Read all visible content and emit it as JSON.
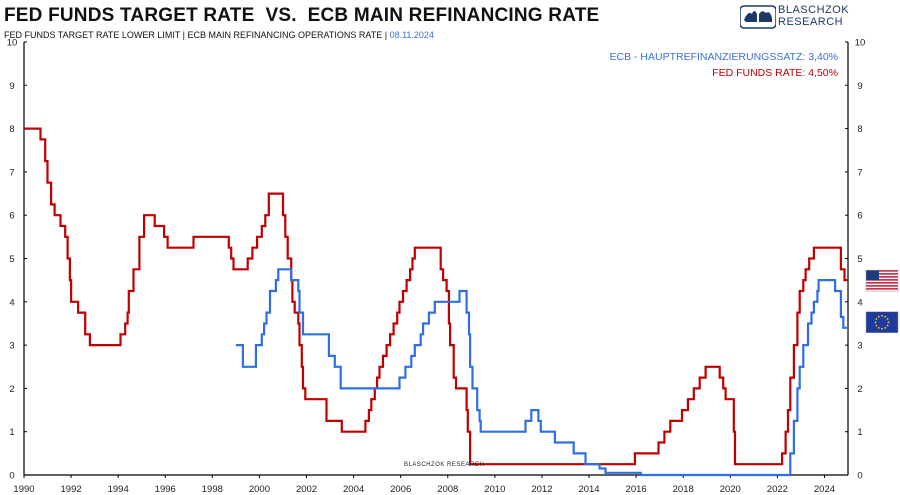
{
  "header": {
    "title": "FED FUNDS TARGET RATE  VS.  ECB MAIN REFINANCING RATE",
    "subtitle_main": "FED FUNDS TARGET RATE LOWER LIMIT | ECB MAIN REFINANCING OPERATIONS RATE | ",
    "subtitle_date": "08.11.2024"
  },
  "logo": {
    "line1": "BLASCHZOK",
    "line2": "RESEARCH",
    "icon": "bull-bear-logo-icon"
  },
  "watermark": "BLASCHZOK  RESEARCH",
  "legend": {
    "ecb_label": "ECB - HAUPTREFINANZIERUNGSSATZ: 3,40%",
    "fed_label": "FED FUNDS RATE: 4,50%"
  },
  "flags": {
    "us": "us-flag-icon",
    "eu": "eu-flag-icon"
  },
  "colors": {
    "fed": "#c00000",
    "ecb": "#2f6fe0",
    "axis": "#000000"
  },
  "chart_data": {
    "type": "line",
    "title": "FED FUNDS TARGET RATE  VS.  ECB MAIN REFINANCING RATE",
    "xlim": [
      1990,
      2025
    ],
    "ylim": [
      0,
      10
    ],
    "x_ticks": [
      1990,
      1992,
      1994,
      1996,
      1998,
      2000,
      2002,
      2004,
      2006,
      2008,
      2010,
      2012,
      2014,
      2016,
      2018,
      2020,
      2022,
      2024
    ],
    "y_ticks": [
      0,
      1,
      2,
      3,
      4,
      5,
      6,
      7,
      8,
      9,
      10
    ],
    "grid": false,
    "legend_position": "top-right",
    "series": [
      {
        "name": "FED FUNDS RATE: 4,50%",
        "color": "#c00000",
        "step": true,
        "points": [
          [
            1990.0,
            8.0
          ],
          [
            1990.7,
            7.75
          ],
          [
            1990.9,
            7.25
          ],
          [
            1991.0,
            6.75
          ],
          [
            1991.15,
            6.25
          ],
          [
            1991.3,
            6.0
          ],
          [
            1991.55,
            5.75
          ],
          [
            1991.75,
            5.5
          ],
          [
            1991.85,
            5.0
          ],
          [
            1991.95,
            4.5
          ],
          [
            1992.0,
            4.0
          ],
          [
            1992.3,
            3.75
          ],
          [
            1992.6,
            3.25
          ],
          [
            1992.8,
            3.0
          ],
          [
            1994.1,
            3.25
          ],
          [
            1994.3,
            3.5
          ],
          [
            1994.4,
            3.75
          ],
          [
            1994.45,
            4.25
          ],
          [
            1994.65,
            4.75
          ],
          [
            1994.9,
            5.5
          ],
          [
            1995.1,
            6.0
          ],
          [
            1995.55,
            5.75
          ],
          [
            1995.95,
            5.5
          ],
          [
            1996.1,
            5.25
          ],
          [
            1997.2,
            5.5
          ],
          [
            1998.7,
            5.25
          ],
          [
            1998.8,
            5.0
          ],
          [
            1998.9,
            4.75
          ],
          [
            1999.5,
            5.0
          ],
          [
            1999.7,
            5.25
          ],
          [
            1999.9,
            5.5
          ],
          [
            2000.1,
            5.75
          ],
          [
            2000.25,
            6.0
          ],
          [
            2000.4,
            6.5
          ],
          [
            2001.0,
            6.0
          ],
          [
            2001.1,
            5.5
          ],
          [
            2001.2,
            5.0
          ],
          [
            2001.35,
            4.5
          ],
          [
            2001.4,
            4.0
          ],
          [
            2001.5,
            3.75
          ],
          [
            2001.65,
            3.5
          ],
          [
            2001.7,
            3.0
          ],
          [
            2001.8,
            2.5
          ],
          [
            2001.85,
            2.0
          ],
          [
            2001.95,
            1.75
          ],
          [
            2002.85,
            1.25
          ],
          [
            2003.5,
            1.0
          ],
          [
            2004.5,
            1.25
          ],
          [
            2004.65,
            1.5
          ],
          [
            2004.75,
            1.75
          ],
          [
            2004.9,
            2.0
          ],
          [
            2005.0,
            2.25
          ],
          [
            2005.1,
            2.5
          ],
          [
            2005.25,
            2.75
          ],
          [
            2005.4,
            3.0
          ],
          [
            2005.55,
            3.25
          ],
          [
            2005.7,
            3.5
          ],
          [
            2005.85,
            3.75
          ],
          [
            2005.95,
            4.0
          ],
          [
            2006.1,
            4.25
          ],
          [
            2006.25,
            4.5
          ],
          [
            2006.4,
            4.75
          ],
          [
            2006.5,
            5.0
          ],
          [
            2006.6,
            5.25
          ],
          [
            2007.7,
            4.75
          ],
          [
            2007.8,
            4.5
          ],
          [
            2007.95,
            4.25
          ],
          [
            2008.05,
            3.5
          ],
          [
            2008.1,
            3.0
          ],
          [
            2008.25,
            2.25
          ],
          [
            2008.35,
            2.0
          ],
          [
            2008.8,
            1.5
          ],
          [
            2008.85,
            1.0
          ],
          [
            2008.95,
            0.25
          ],
          [
            2015.95,
            0.5
          ],
          [
            2016.95,
            0.75
          ],
          [
            2017.2,
            1.0
          ],
          [
            2017.45,
            1.25
          ],
          [
            2017.95,
            1.5
          ],
          [
            2018.2,
            1.75
          ],
          [
            2018.45,
            2.0
          ],
          [
            2018.7,
            2.25
          ],
          [
            2018.95,
            2.5
          ],
          [
            2019.55,
            2.25
          ],
          [
            2019.7,
            2.0
          ],
          [
            2019.8,
            1.75
          ],
          [
            2020.15,
            1.0
          ],
          [
            2020.2,
            0.25
          ],
          [
            2022.2,
            0.5
          ],
          [
            2022.35,
            1.0
          ],
          [
            2022.45,
            1.5
          ],
          [
            2022.55,
            2.25
          ],
          [
            2022.7,
            3.0
          ],
          [
            2022.85,
            3.75
          ],
          [
            2022.95,
            4.25
          ],
          [
            2023.1,
            4.5
          ],
          [
            2023.2,
            4.75
          ],
          [
            2023.35,
            5.0
          ],
          [
            2023.55,
            5.25
          ],
          [
            2024.7,
            4.75
          ],
          [
            2024.85,
            4.5
          ],
          [
            2025.0,
            4.5
          ]
        ]
      },
      {
        "name": "ECB - HAUPTREFINANZIERUNGSSATZ: 3,40%",
        "color": "#2f6fe0",
        "step": true,
        "points": [
          [
            1999.0,
            3.0
          ],
          [
            1999.3,
            2.5
          ],
          [
            1999.85,
            3.0
          ],
          [
            2000.1,
            3.25
          ],
          [
            2000.2,
            3.5
          ],
          [
            2000.3,
            3.75
          ],
          [
            2000.45,
            4.25
          ],
          [
            2000.7,
            4.5
          ],
          [
            2000.8,
            4.75
          ],
          [
            2001.35,
            4.5
          ],
          [
            2001.65,
            4.25
          ],
          [
            2001.7,
            3.75
          ],
          [
            2001.85,
            3.25
          ],
          [
            2002.95,
            2.75
          ],
          [
            2003.2,
            2.5
          ],
          [
            2003.45,
            2.0
          ],
          [
            2005.95,
            2.25
          ],
          [
            2006.2,
            2.5
          ],
          [
            2006.45,
            2.75
          ],
          [
            2006.6,
            3.0
          ],
          [
            2006.85,
            3.25
          ],
          [
            2006.95,
            3.5
          ],
          [
            2007.2,
            3.75
          ],
          [
            2007.45,
            4.0
          ],
          [
            2008.5,
            4.25
          ],
          [
            2008.8,
            3.75
          ],
          [
            2008.9,
            3.25
          ],
          [
            2008.95,
            2.5
          ],
          [
            2009.05,
            2.0
          ],
          [
            2009.25,
            1.5
          ],
          [
            2009.35,
            1.25
          ],
          [
            2009.4,
            1.0
          ],
          [
            2011.3,
            1.25
          ],
          [
            2011.55,
            1.5
          ],
          [
            2011.85,
            1.25
          ],
          [
            2011.95,
            1.0
          ],
          [
            2012.55,
            0.75
          ],
          [
            2013.35,
            0.5
          ],
          [
            2013.85,
            0.25
          ],
          [
            2014.45,
            0.15
          ],
          [
            2014.7,
            0.05
          ],
          [
            2016.2,
            0.0
          ],
          [
            2022.55,
            0.5
          ],
          [
            2022.7,
            1.25
          ],
          [
            2022.85,
            2.0
          ],
          [
            2022.95,
            2.5
          ],
          [
            2023.1,
            3.0
          ],
          [
            2023.3,
            3.5
          ],
          [
            2023.45,
            3.75
          ],
          [
            2023.55,
            4.0
          ],
          [
            2023.7,
            4.25
          ],
          [
            2023.75,
            4.5
          ],
          [
            2024.45,
            4.25
          ],
          [
            2024.7,
            3.65
          ],
          [
            2024.8,
            3.4
          ],
          [
            2025.0,
            3.4
          ]
        ]
      }
    ]
  }
}
